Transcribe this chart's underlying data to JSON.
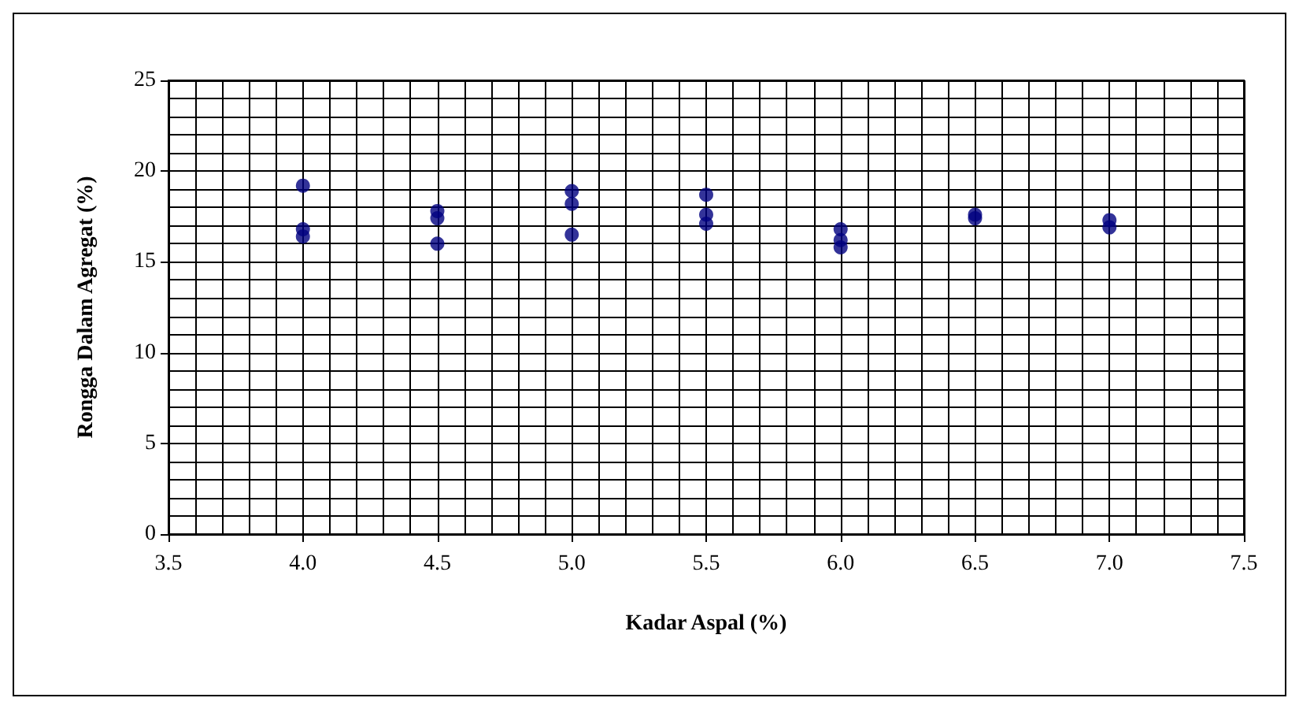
{
  "chart_data": {
    "type": "scatter",
    "xlabel": "Kadar Aspal (%)",
    "ylabel": "Rongga Dalam Agregat (%)",
    "series": [
      {
        "color": "#000080",
        "x": [
          4.0,
          4.0,
          4.0,
          4.5,
          4.5,
          4.5,
          5.0,
          5.0,
          5.0,
          5.5,
          5.5,
          5.5,
          6.0,
          6.0,
          6.0,
          6.5,
          6.5,
          7.0,
          7.0
        ],
        "values": [
          19.2,
          16.8,
          16.4,
          17.8,
          17.4,
          16.0,
          18.9,
          18.2,
          16.5,
          18.7,
          17.6,
          17.1,
          16.8,
          16.2,
          15.8,
          17.6,
          17.4,
          17.3,
          16.9
        ]
      }
    ],
    "xlim": [
      3.5,
      7.5
    ],
    "xticks": [
      3.5,
      {
        "value": 4,
        "label": "4.0"
      },
      4.5,
      {
        "value": 5,
        "label": "5.0"
      },
      5.5,
      {
        "value": 6,
        "label": "6.0"
      },
      6.5,
      {
        "value": 7,
        "label": "7.0"
      },
      7.5
    ],
    "ylim": [
      0,
      25
    ],
    "yticks": [
      0,
      5,
      10,
      15,
      20,
      25
    ],
    "grid": true,
    "marker": "circle"
  }
}
